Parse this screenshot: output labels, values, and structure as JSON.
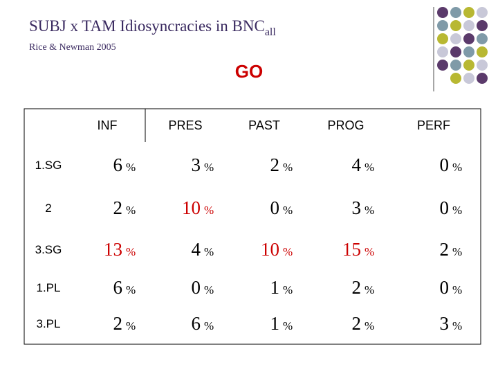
{
  "header": {
    "title": "SUBJ x TAM Idiosyncracies in BNC",
    "title_subscript": "all",
    "subtitle": "Rice & Newman 2005",
    "heading": "GO"
  },
  "table": {
    "columns": [
      "INF",
      "PRES",
      "PAST",
      "PROG",
      "PERF"
    ],
    "rows": [
      {
        "label": "1.SG",
        "cells": [
          {
            "num": 6,
            "unit": "%"
          },
          {
            "num": 3,
            "unit": "%"
          },
          {
            "num": 2,
            "unit": "%"
          },
          {
            "num": 4,
            "unit": "%"
          },
          {
            "num": 0,
            "unit": "%"
          }
        ]
      },
      {
        "label": "2",
        "cells": [
          {
            "num": 2,
            "unit": "%"
          },
          {
            "num": 10,
            "unit": "%",
            "color": "#cc0000"
          },
          {
            "num": 0,
            "unit": "%"
          },
          {
            "num": 3,
            "unit": "%"
          },
          {
            "num": 0,
            "unit": "%"
          }
        ]
      },
      {
        "label": "3.SG",
        "cells": [
          {
            "num": 13,
            "unit": "%",
            "color": "#cc0000"
          },
          {
            "num": 4,
            "unit": "%"
          },
          {
            "num": 10,
            "unit": "%",
            "color": "#cc0000"
          },
          {
            "num": 15,
            "unit": "%",
            "color": "#cc0000"
          },
          {
            "num": 2,
            "unit": "%"
          }
        ]
      },
      {
        "label": "1.PL",
        "cells": [
          {
            "num": 6,
            "unit": "%"
          },
          {
            "num": 0,
            "unit": "%"
          },
          {
            "num": 1,
            "unit": "%"
          },
          {
            "num": 2,
            "unit": "%"
          },
          {
            "num": 0,
            "unit": "%"
          }
        ]
      },
      {
        "label": "3.PL",
        "cells": [
          {
            "num": 2,
            "unit": "%"
          },
          {
            "num": 6,
            "unit": "%"
          },
          {
            "num": 1,
            "unit": "%"
          },
          {
            "num": 2,
            "unit": "%"
          },
          {
            "num": 3,
            "unit": "%"
          }
        ]
      }
    ]
  }
}
